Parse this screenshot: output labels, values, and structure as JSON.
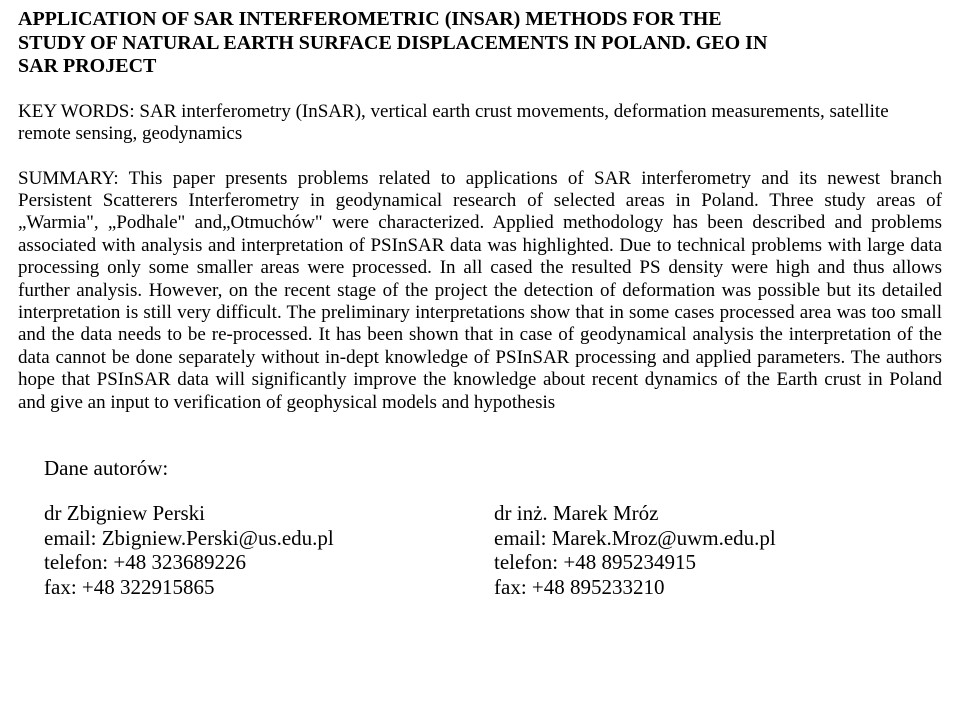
{
  "title_line1": "APPLICATION OF SAR INTERFEROMETRIC (INSAR) METHODS FOR THE",
  "title_line2": "STUDY OF NATURAL EARTH SURFACE DISPLACEMENTS IN POLAND. GEO IN",
  "title_line3": "SAR PROJECT",
  "keywords_label": "KEY WORDS: ",
  "keywords_text": "SAR interferometry (InSAR), vertical earth crust movements, deformation measurements, satellite remote sensing, geodynamics",
  "summary_label": "SUMMARY: ",
  "summary_text": "This paper presents problems related to applications of SAR interferometry and its newest branch Persistent Scatterers Interferometry in geodynamical research of selected areas in Poland. Three study areas of „Warmia\", „Podhale\" and„Otmuchów\" were characterized. Applied methodology has been described and problems associated with analysis and interpretation of PSInSAR data was highlighted. Due to technical problems with large data processing only some smaller areas were processed. In all cased the resulted PS density were high and thus allows further analysis. However, on the recent stage of the project the detection of deformation was possible but its detailed interpretation is still very difficult. The preliminary interpretations show that in some cases processed area was too small and the data needs to be re-processed. It has been shown that in case of geodynamical analysis the interpretation of the data cannot be done separately without in-dept knowledge of PSInSAR processing and applied parameters. The authors hope that PSInSAR data will significantly improve the knowledge about recent dynamics of the Earth crust in Poland and give an input to verification of geophysical models and hypothesis",
  "authors_heading": "Dane autorów:",
  "author1": {
    "name": "dr Zbigniew Perski",
    "email": "email: Zbigniew.Perski@us.edu.pl",
    "phone": "telefon: +48 323689226",
    "fax": "fax: +48 322915865"
  },
  "author2": {
    "name": " dr inż. Marek Mróz",
    "email": " email: Marek.Mroz@uwm.edu.pl",
    "phone": " telefon: +48 895234915",
    "fax": " fax: +48 895233210"
  }
}
